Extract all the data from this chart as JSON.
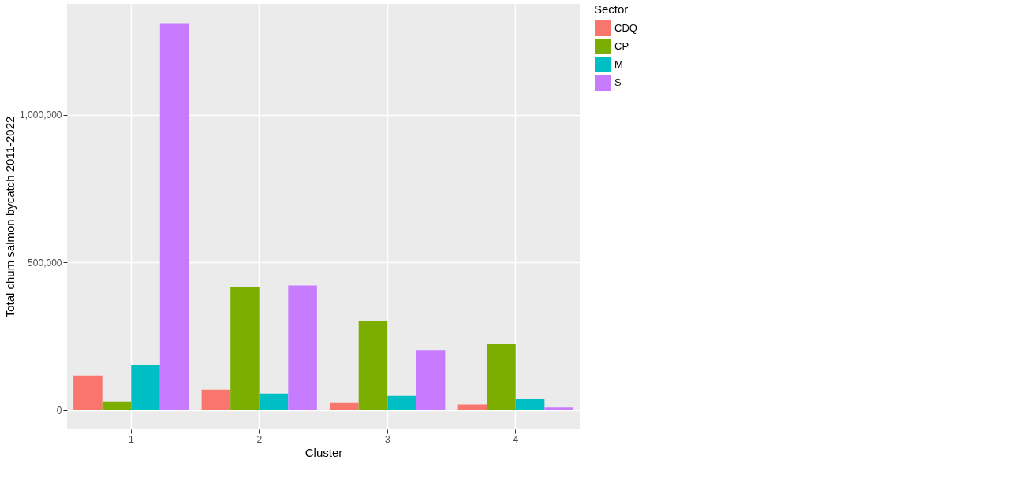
{
  "chart_data": {
    "type": "bar",
    "xlabel": "Cluster",
    "ylabel": "Total chum salmon bycatch 2011-2022",
    "legend_title": "Sector",
    "categories": [
      "1",
      "2",
      "3",
      "4"
    ],
    "series": [
      {
        "name": "CDQ",
        "color": "#f8766d",
        "values": [
          117000,
          69000,
          24000,
          19000
        ]
      },
      {
        "name": "CP",
        "color": "#7cae00",
        "values": [
          29000,
          415000,
          302000,
          223000
        ]
      },
      {
        "name": "M",
        "color": "#00bfc4",
        "values": [
          151000,
          56000,
          48000,
          37000
        ]
      },
      {
        "name": "S",
        "color": "#c77cff",
        "values": [
          1310000,
          422000,
          201000,
          9000
        ]
      }
    ],
    "ylim": [
      -65000,
      1375000
    ],
    "yticks": [
      {
        "value": 0,
        "label": "0"
      },
      {
        "value": 500000,
        "label": "500,000"
      },
      {
        "value": 1000000,
        "label": "1,000,000"
      }
    ],
    "grid": true,
    "legend": "right"
  }
}
